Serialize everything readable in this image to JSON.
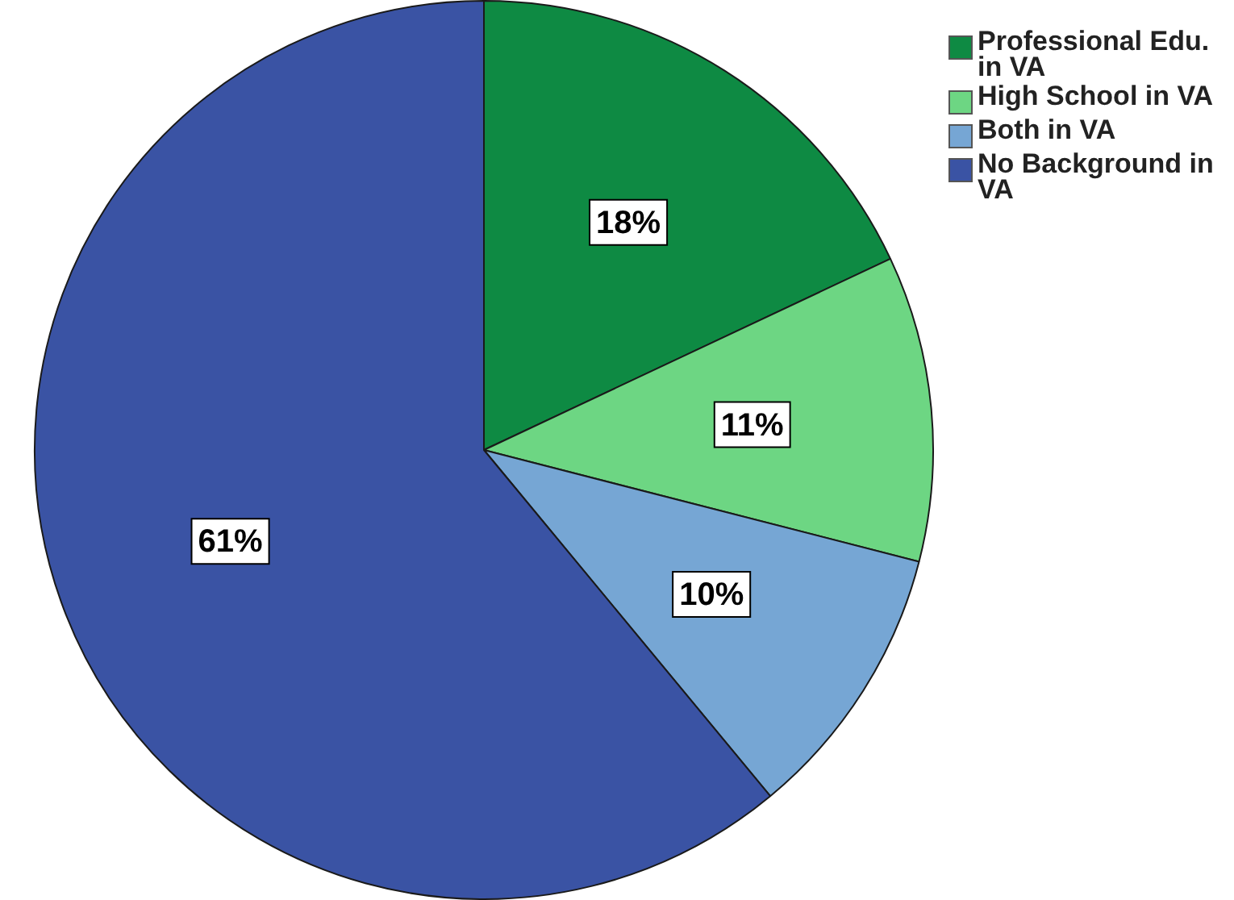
{
  "chart_data": {
    "type": "pie",
    "categories": [
      "Professional Edu. in VA",
      "High School in VA",
      "Both in VA",
      "No Background in VA"
    ],
    "values": [
      18,
      11,
      10,
      61
    ],
    "colors": [
      "#0e8a43",
      "#6dd683",
      "#76a6d4",
      "#3a53a4"
    ],
    "value_labels": [
      "18%",
      "11%",
      "10%",
      "61%"
    ],
    "legend": "top right"
  }
}
